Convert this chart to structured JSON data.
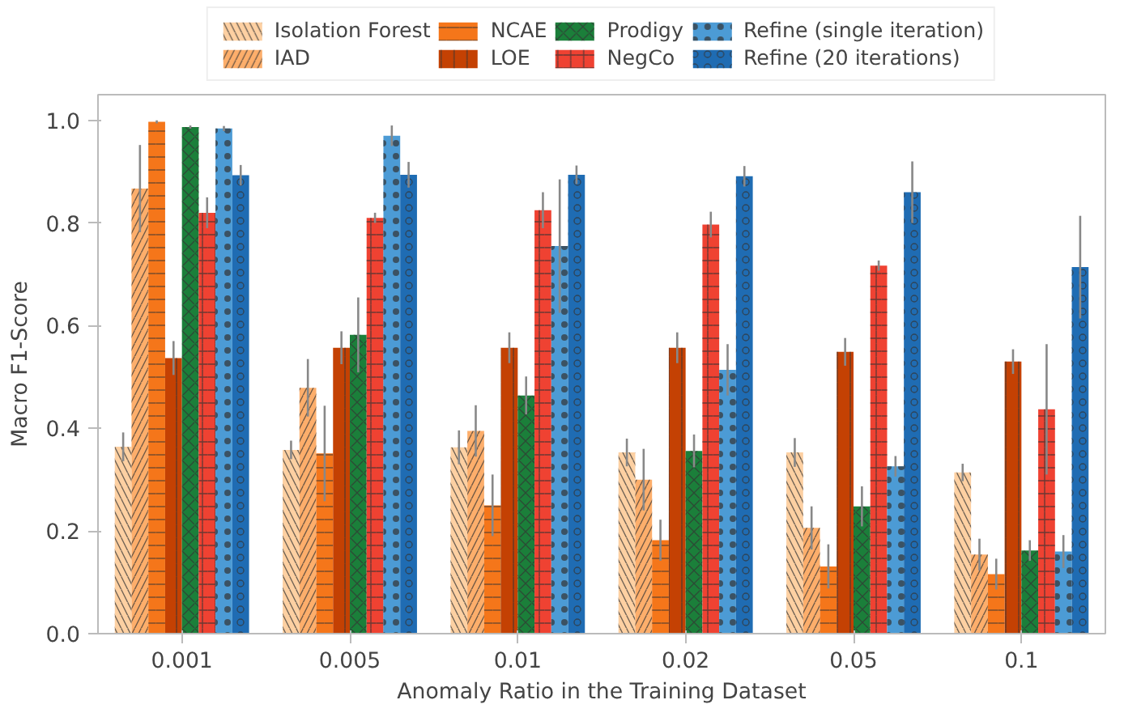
{
  "chart_data": {
    "type": "bar",
    "xlabel": "Anomaly Ratio in the Training Dataset",
    "ylabel": "Macro F1-Score",
    "categories": [
      "0.001",
      "0.005",
      "0.01",
      "0.02",
      "0.05",
      "0.1"
    ],
    "ylim": [
      0,
      1.05
    ],
    "yticks": [
      {
        "value": 0,
        "label": "0.0"
      },
      0.2,
      0.4,
      0.6,
      0.8,
      {
        "value": 1,
        "label": "1.0"
      }
    ],
    "grid": false,
    "legend": "top",
    "series": [
      {
        "name": "Isolation Forest",
        "color": "#fdd0a2",
        "values": [
          0.364,
          0.358,
          0.363,
          0.353,
          0.353,
          0.314
        ],
        "errors": [
          0.028,
          0.018,
          0.033,
          0.027,
          0.028,
          0.017
        ]
      },
      {
        "name": "IAD",
        "color": "#fdae6b",
        "values": [
          0.867,
          0.479,
          0.395,
          0.3,
          0.206,
          0.154
        ],
        "errors": [
          0.085,
          0.056,
          0.05,
          0.06,
          0.042,
          0.031
        ]
      },
      {
        "name": "NCAE",
        "color": "#f5761a",
        "values": [
          0.997,
          0.351,
          0.25,
          0.182,
          0.131,
          0.116
        ],
        "errors": [
          0.003,
          0.093,
          0.06,
          0.04,
          0.043,
          0.03
        ]
      },
      {
        "name": "LOE",
        "color": "#c44103",
        "values": [
          0.537,
          0.557,
          0.557,
          0.557,
          0.549,
          0.53
        ],
        "errors": [
          0.033,
          0.032,
          0.03,
          0.03,
          0.027,
          0.024
        ]
      },
      {
        "name": "Prodigy",
        "color": "#1b7f3a",
        "values": [
          0.987,
          0.582,
          0.464,
          0.356,
          0.248,
          0.162
        ],
        "errors": [
          0.003,
          0.073,
          0.037,
          0.032,
          0.039,
          0.02
        ]
      },
      {
        "name": "NegCo",
        "color": "#ef4232",
        "values": [
          0.82,
          0.81,
          0.825,
          0.797,
          0.717,
          0.437
        ],
        "errors": [
          0.03,
          0.01,
          0.035,
          0.025,
          0.01,
          0.127
        ]
      },
      {
        "name": "Refine (single iteration)",
        "color": "#4c9bd5",
        "values": [
          0.984,
          0.97,
          0.755,
          0.514,
          0.326,
          0.16
        ],
        "errors": [
          0.005,
          0.02,
          0.13,
          0.05,
          0.02,
          0.032
        ]
      },
      {
        "name": "Refine (20 iterations)",
        "color": "#1f6cb3",
        "values": [
          0.893,
          0.894,
          0.894,
          0.891,
          0.86,
          0.714
        ],
        "errors": [
          0.02,
          0.025,
          0.018,
          0.02,
          0.06,
          0.1
        ]
      }
    ]
  }
}
